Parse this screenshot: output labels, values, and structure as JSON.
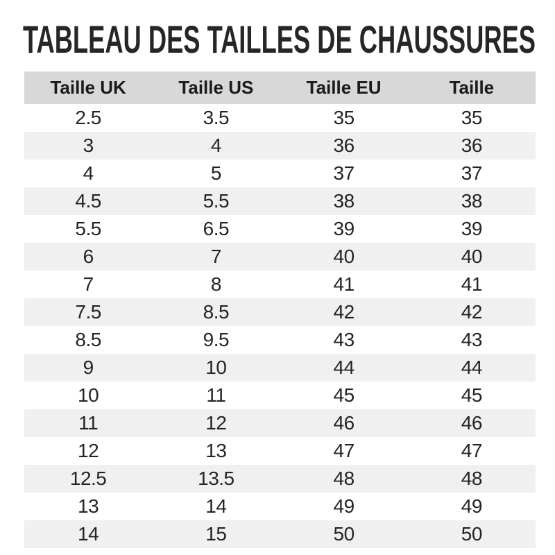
{
  "page": {
    "title": "TABLEAU DES TAILLES DE CHAUSSURES"
  },
  "chart_data": {
    "type": "table",
    "title": "TABLEAU DES TAILLES DE CHAUSSURES",
    "columns": [
      "Taille UK",
      "Taille US",
      "Taille EU",
      "Taille"
    ],
    "rows": [
      [
        "2.5",
        "3.5",
        "35",
        "35"
      ],
      [
        "3",
        "4",
        "36",
        "36"
      ],
      [
        "4",
        "5",
        "37",
        "37"
      ],
      [
        "4.5",
        "5.5",
        "38",
        "38"
      ],
      [
        "5.5",
        "6.5",
        "39",
        "39"
      ],
      [
        "6",
        "7",
        "40",
        "40"
      ],
      [
        "7",
        "8",
        "41",
        "41"
      ],
      [
        "7.5",
        "8.5",
        "42",
        "42"
      ],
      [
        "8.5",
        "9.5",
        "43",
        "43"
      ],
      [
        "9",
        "10",
        "44",
        "44"
      ],
      [
        "10",
        "11",
        "45",
        "45"
      ],
      [
        "11",
        "12",
        "46",
        "46"
      ],
      [
        "12",
        "13",
        "47",
        "47"
      ],
      [
        "12.5",
        "13.5",
        "48",
        "48"
      ],
      [
        "13",
        "14",
        "49",
        "49"
      ],
      [
        "14",
        "15",
        "50",
        "50"
      ]
    ],
    "layout": {
      "header_background": "#d8d8d8",
      "zebra_stripe_background": "#f0f0f0",
      "first_data_row_background": "#ffffff",
      "grid": false
    }
  },
  "colors": {
    "header_bg": "#d8d8d8",
    "stripe_bg": "#f0f0f0",
    "text": "#242424",
    "title": "#262626"
  }
}
